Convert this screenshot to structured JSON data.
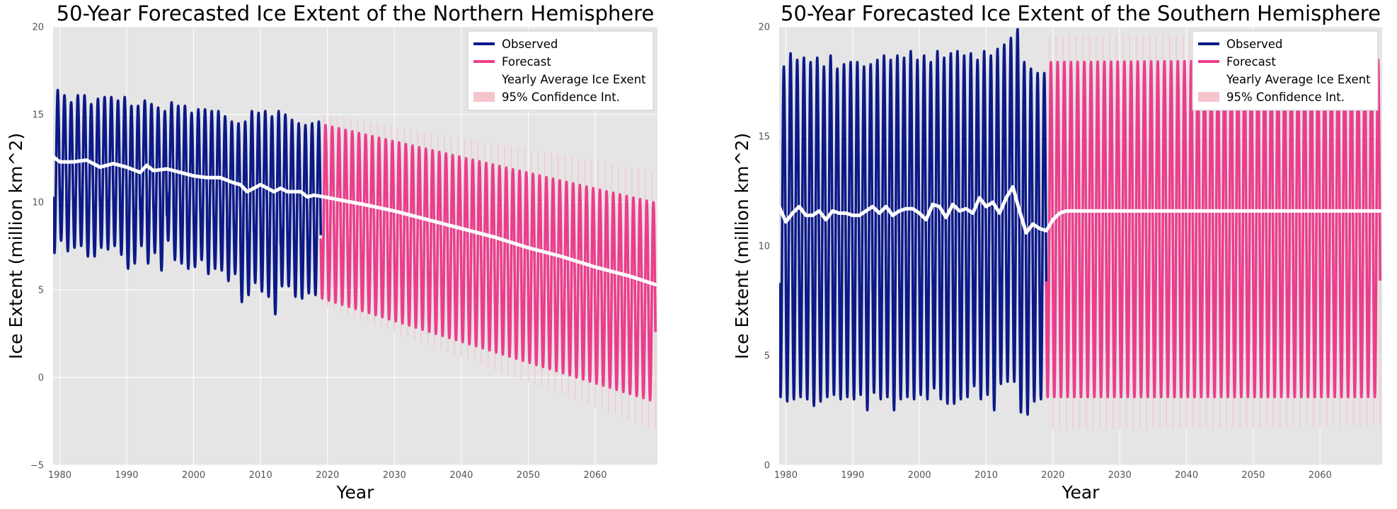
{
  "colors": {
    "observed": "#0b1a88",
    "forecast": "#ec3d8c",
    "yearly_average": "#ffffff",
    "confidence": "#f6c4cc",
    "plot_background": "#e5e5e5",
    "grid": "#ffffff"
  },
  "chart_data": [
    {
      "type": "line",
      "title": "50-Year Forecasted Ice Extent of the Northern Hemisphere",
      "xlabel": "Year",
      "ylabel": "Ice Extent (million km^2)",
      "xlim": [
        1979,
        2069.3
      ],
      "ylim": [
        -5,
        20
      ],
      "xticks": [
        1980,
        1990,
        2000,
        2010,
        2020,
        2030,
        2040,
        2050,
        2060
      ],
      "yticks": [
        -5,
        0,
        5,
        10,
        15,
        20
      ],
      "grid": true,
      "legend": {
        "position": "top-right",
        "entries": [
          "Observed",
          "Forecast",
          "Yearly Average Ice Exent",
          "95% Confidence Int."
        ]
      },
      "series": [
        {
          "name": "Observed",
          "kind": "seasonal-cycle",
          "years": [
            1979,
            1980,
            1981,
            1982,
            1983,
            1984,
            1985,
            1986,
            1987,
            1988,
            1989,
            1990,
            1991,
            1992,
            1993,
            1994,
            1995,
            1996,
            1997,
            1998,
            1999,
            2000,
            2001,
            2002,
            2003,
            2004,
            2005,
            2006,
            2007,
            2008,
            2009,
            2010,
            2011,
            2012,
            2013,
            2014,
            2015,
            2016,
            2017,
            2018
          ],
          "annual_max": [
            16.4,
            16.1,
            15.7,
            16.1,
            16.1,
            15.6,
            15.9,
            16.0,
            16.0,
            15.8,
            16.0,
            15.5,
            15.5,
            15.8,
            15.6,
            15.4,
            15.2,
            15.7,
            15.5,
            15.5,
            15.1,
            15.3,
            15.3,
            15.2,
            15.2,
            14.9,
            14.6,
            14.5,
            14.6,
            15.2,
            15.1,
            15.2,
            14.9,
            15.2,
            15.0,
            14.7,
            14.5,
            14.4,
            14.5,
            14.6
          ],
          "annual_min": [
            7.1,
            7.8,
            7.2,
            7.4,
            7.5,
            6.9,
            6.9,
            7.4,
            7.3,
            7.5,
            7.0,
            6.2,
            6.5,
            7.5,
            6.5,
            7.1,
            6.1,
            7.8,
            6.7,
            6.5,
            6.2,
            6.3,
            6.7,
            5.9,
            6.2,
            6.1,
            5.5,
            5.9,
            4.3,
            4.7,
            5.4,
            4.9,
            4.6,
            3.6,
            5.2,
            5.2,
            4.6,
            4.5,
            4.8,
            4.7
          ]
        },
        {
          "name": "Forecast",
          "kind": "seasonal-cycle",
          "start_year": 2019,
          "end_year": 2068,
          "annual_max_start": 14.4,
          "annual_max_end": 10.0,
          "annual_min_start": 4.5,
          "annual_min_end": -1.3
        },
        {
          "name": "Yearly Average Ice Exent",
          "kind": "line",
          "x": [
            1979,
            1980,
            1982,
            1984,
            1986,
            1988,
            1990,
            1992,
            1993,
            1994,
            1996,
            1998,
            2000,
            2002,
            2004,
            2006,
            2007,
            2008,
            2010,
            2012,
            2013,
            2014,
            2016,
            2017,
            2018,
            2019.5,
            2025,
            2030,
            2035,
            2040,
            2045,
            2050,
            2055,
            2060,
            2065,
            2069
          ],
          "y": [
            12.6,
            12.3,
            12.3,
            12.4,
            12.0,
            12.2,
            12.0,
            11.7,
            12.1,
            11.8,
            11.9,
            11.7,
            11.5,
            11.4,
            11.4,
            11.1,
            11.0,
            10.6,
            11.0,
            10.6,
            10.8,
            10.6,
            10.6,
            10.3,
            10.4,
            10.3,
            9.9,
            9.5,
            9.0,
            8.5,
            8.0,
            7.4,
            6.9,
            6.3,
            5.8,
            5.3
          ]
        },
        {
          "name": "95% Confidence Int.",
          "kind": "band",
          "start_year": 2019,
          "end_year": 2068,
          "upper_start": 15.0,
          "upper_end": 11.8,
          "lower_start": 4.0,
          "lower_end": -3.0
        }
      ]
    },
    {
      "type": "line",
      "title": "50-Year Forecasted Ice Extent of the Southern Hemisphere",
      "xlabel": "Year",
      "ylabel": "Ice Extent (million km^2)",
      "xlim": [
        1979,
        2069.3
      ],
      "ylim": [
        0,
        20
      ],
      "xticks": [
        1980,
        1990,
        2000,
        2010,
        2020,
        2030,
        2040,
        2050,
        2060
      ],
      "yticks": [
        0,
        5,
        10,
        15,
        20
      ],
      "grid": true,
      "legend": {
        "position": "top-right",
        "entries": [
          "Observed",
          "Forecast",
          "Yearly Average Ice Exent",
          "95% Confidence Int."
        ]
      },
      "series": [
        {
          "name": "Observed",
          "kind": "seasonal-cycle",
          "years": [
            1979,
            1980,
            1981,
            1982,
            1983,
            1984,
            1985,
            1986,
            1987,
            1988,
            1989,
            1990,
            1991,
            1992,
            1993,
            1994,
            1995,
            1996,
            1997,
            1998,
            1999,
            2000,
            2001,
            2002,
            2003,
            2004,
            2005,
            2006,
            2007,
            2008,
            2009,
            2010,
            2011,
            2012,
            2013,
            2014,
            2015,
            2016,
            2017,
            2018
          ],
          "annual_max": [
            18.2,
            18.8,
            18.5,
            18.6,
            18.4,
            18.6,
            18.2,
            18.7,
            18.1,
            18.3,
            18.4,
            18.4,
            18.2,
            18.3,
            18.5,
            18.7,
            18.5,
            18.7,
            18.6,
            18.9,
            18.5,
            18.7,
            18.4,
            18.9,
            18.6,
            18.8,
            18.9,
            18.7,
            18.8,
            18.5,
            18.9,
            18.7,
            19.0,
            19.2,
            19.5,
            19.9,
            18.4,
            18.1,
            17.9,
            17.9
          ],
          "annual_min": [
            3.1,
            2.9,
            3.0,
            3.1,
            3.0,
            2.7,
            2.9,
            3.1,
            3.2,
            3.0,
            3.1,
            3.0,
            3.2,
            2.5,
            3.3,
            3.0,
            3.1,
            2.5,
            3.0,
            3.1,
            3.0,
            3.2,
            3.0,
            3.5,
            3.0,
            2.8,
            2.8,
            3.0,
            3.1,
            3.6,
            3.0,
            3.2,
            2.5,
            3.7,
            3.8,
            3.8,
            2.4,
            2.3,
            2.9,
            3.0
          ]
        },
        {
          "name": "Forecast",
          "kind": "seasonal-cycle",
          "start_year": 2019,
          "end_year": 2068,
          "annual_max_start": 18.4,
          "annual_max_end": 18.5,
          "annual_min_start": 3.1,
          "annual_min_end": 3.1
        },
        {
          "name": "Yearly Average Ice Exent",
          "kind": "line",
          "x": [
            1979,
            1980,
            1981,
            1982,
            1983,
            1984,
            1985,
            1986,
            1987,
            1988,
            1989,
            1990,
            1991,
            1992,
            1993,
            1994,
            1995,
            1996,
            1997,
            1998,
            1999,
            2000,
            2001,
            2002,
            2003,
            2004,
            2005,
            2006,
            2007,
            2008,
            2009,
            2010,
            2011,
            2012,
            2013,
            2014,
            2015,
            2016,
            2017,
            2018,
            2019,
            2020,
            2021,
            2022,
            2069
          ],
          "y": [
            11.8,
            11.1,
            11.5,
            11.8,
            11.4,
            11.4,
            11.6,
            11.2,
            11.6,
            11.5,
            11.5,
            11.4,
            11.4,
            11.6,
            11.8,
            11.5,
            11.8,
            11.4,
            11.6,
            11.7,
            11.7,
            11.5,
            11.2,
            11.9,
            11.8,
            11.3,
            11.9,
            11.6,
            11.7,
            11.5,
            12.2,
            11.8,
            12.0,
            11.5,
            12.2,
            12.7,
            11.6,
            10.6,
            11.0,
            10.8,
            10.7,
            11.2,
            11.5,
            11.6,
            11.6
          ]
        },
        {
          "name": "95% Confidence Int.",
          "kind": "band",
          "start_year": 2019,
          "end_year": 2068,
          "upper_start": 19.6,
          "upper_end": 19.7,
          "lower_start": 1.6,
          "lower_end": 1.8
        }
      ]
    }
  ]
}
